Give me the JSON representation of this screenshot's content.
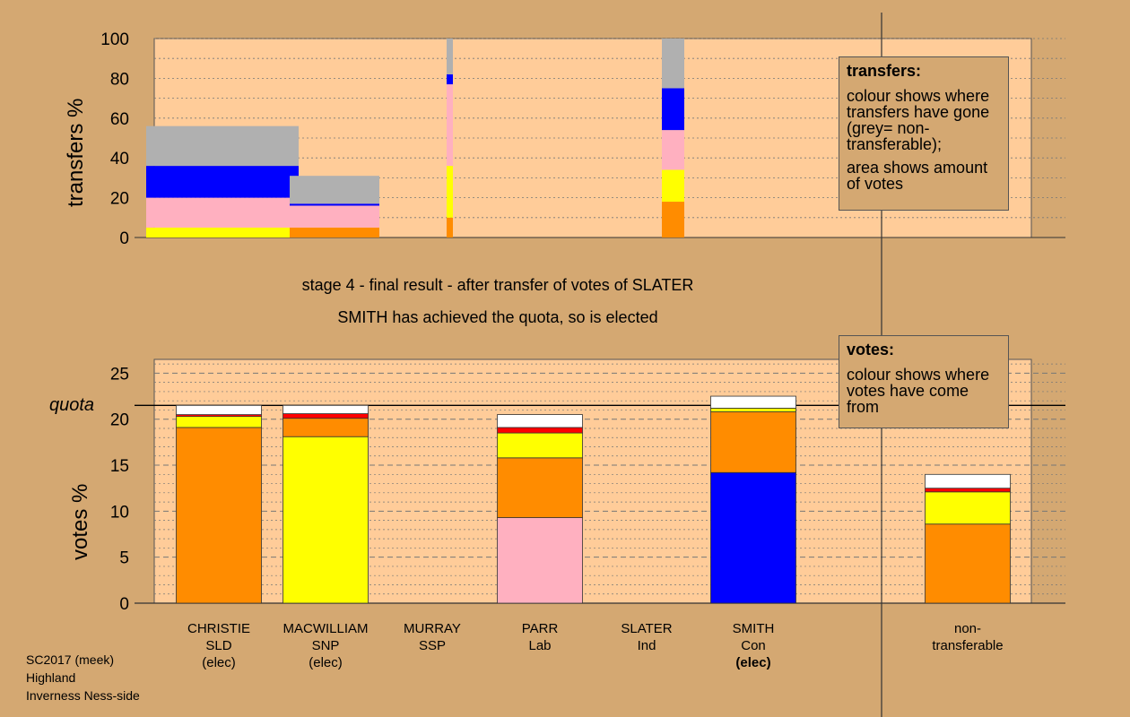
{
  "colors": {
    "background": "#d4a872",
    "plot_bg": "#ffcc99",
    "SLD": "#ff8c00",
    "SNP": "#ffff00",
    "SSP": "#ff0000",
    "Lab": "#ffb0c0",
    "Ind": "#ffffff",
    "Con": "#0000ff",
    "nontransferable": "#b0b0b0"
  },
  "titles": {
    "line1": "stage 4 - final result - after transfer of votes of SLATER",
    "line2": "SMITH has achieved the quota, so is elected"
  },
  "legends": {
    "transfers": {
      "heading": "transfers:",
      "text1": "colour shows where transfers have gone (grey= non-transferable);",
      "text2": "area shows amount of votes"
    },
    "votes": {
      "heading": "votes:",
      "text1": "colour shows where votes have come from"
    }
  },
  "quota_label": "quota",
  "candidates": [
    {
      "name": "CHRISTIE",
      "party": "SLD",
      "status": "(elec)"
    },
    {
      "name": "MACWILLIAM",
      "party": "SNP",
      "status": "(elec)"
    },
    {
      "name": "MURRAY",
      "party": "SSP",
      "status": ""
    },
    {
      "name": "PARR",
      "party": "Lab",
      "status": ""
    },
    {
      "name": "SLATER",
      "party": "Ind",
      "status": ""
    },
    {
      "name": "SMITH",
      "party": "Con",
      "status": "(elec)"
    }
  ],
  "nontransferable_label": [
    "non-",
    "transferable"
  ],
  "source": {
    "line1": "SC2017 (meek)",
    "line2": "Highland",
    "line3": "Inverness Ness-side"
  },
  "chart_data": [
    {
      "type": "bar",
      "name": "transfers",
      "ylabel": "transfers %",
      "ylim": [
        0,
        100
      ],
      "yticks": [
        0,
        20,
        40,
        60,
        80,
        100
      ],
      "grid": true,
      "bars": [
        {
          "x0": 0,
          "x1": 1.7,
          "segments": [
            {
              "color": "SNP",
              "from": 0,
              "to": 5
            },
            {
              "color": "Lab",
              "from": 5,
              "to": 20
            },
            {
              "color": "Con",
              "from": 20,
              "to": 36
            },
            {
              "color": "nontransferable",
              "from": 36,
              "to": 56
            }
          ]
        },
        {
          "x0": 1.6,
          "x1": 2.6,
          "segments": [
            {
              "color": "SLD",
              "from": 0,
              "to": 5
            },
            {
              "color": "Lab",
              "from": 5,
              "to": 16
            },
            {
              "color": "Con",
              "from": 16,
              "to": 17
            },
            {
              "color": "nontransferable",
              "from": 17,
              "to": 31
            }
          ]
        },
        {
          "x0": 3.35,
          "x1": 3.42,
          "segments": [
            {
              "color": "SLD",
              "from": 0,
              "to": 10
            },
            {
              "color": "SNP",
              "from": 10,
              "to": 36
            },
            {
              "color": "Lab",
              "from": 36,
              "to": 77
            },
            {
              "color": "Con",
              "from": 77,
              "to": 82
            },
            {
              "color": "nontransferable",
              "from": 82,
              "to": 100
            }
          ]
        },
        {
          "x0": 5.75,
          "x1": 6.0,
          "segments": [
            {
              "color": "SLD",
              "from": 0,
              "to": 18
            },
            {
              "color": "SNP",
              "from": 18,
              "to": 34
            },
            {
              "color": "Lab",
              "from": 34,
              "to": 54
            },
            {
              "color": "Con",
              "from": 54,
              "to": 75
            },
            {
              "color": "nontransferable",
              "from": 75,
              "to": 100
            }
          ]
        }
      ]
    },
    {
      "type": "bar",
      "name": "votes",
      "ylabel": "votes %",
      "ylim": [
        0,
        26.5
      ],
      "yticks": [
        0,
        5,
        10,
        15,
        20,
        25
      ],
      "quota": 21.5,
      "grid": true,
      "categories": [
        "CHRISTIE",
        "MACWILLIAM",
        "MURRAY",
        "PARR",
        "SLATER",
        "SMITH",
        "non-transferable"
      ],
      "bars": [
        {
          "category": "CHRISTIE",
          "segments": [
            {
              "color": "SLD",
              "value": 19.1
            },
            {
              "color": "SNP",
              "value": 1.2
            },
            {
              "color": "SSP",
              "value": 0.2
            },
            {
              "color": "Ind",
              "value": 1.0
            }
          ]
        },
        {
          "category": "MACWILLIAM",
          "segments": [
            {
              "color": "SNP",
              "value": 18.1
            },
            {
              "color": "SLD",
              "value": 2.0
            },
            {
              "color": "SSP",
              "value": 0.5
            },
            {
              "color": "Ind",
              "value": 0.9
            }
          ]
        },
        {
          "category": "MURRAY",
          "segments": []
        },
        {
          "category": "PARR",
          "segments": [
            {
              "color": "Lab",
              "value": 9.3
            },
            {
              "color": "SLD",
              "value": 6.5
            },
            {
              "color": "SNP",
              "value": 2.7
            },
            {
              "color": "SSP",
              "value": 0.6
            },
            {
              "color": "Ind",
              "value": 1.4
            }
          ]
        },
        {
          "category": "SLATER",
          "segments": []
        },
        {
          "category": "SMITH",
          "segments": [
            {
              "color": "Con",
              "value": 14.2
            },
            {
              "color": "SLD",
              "value": 6.6
            },
            {
              "color": "SNP",
              "value": 0.4
            },
            {
              "color": "Ind",
              "value": 1.3
            }
          ]
        },
        {
          "category": "non-transferable",
          "segments": [
            {
              "color": "SLD",
              "value": 8.6
            },
            {
              "color": "SNP",
              "value": 3.5
            },
            {
              "color": "SSP",
              "value": 0.4
            },
            {
              "color": "Ind",
              "value": 1.5
            }
          ]
        }
      ]
    }
  ]
}
